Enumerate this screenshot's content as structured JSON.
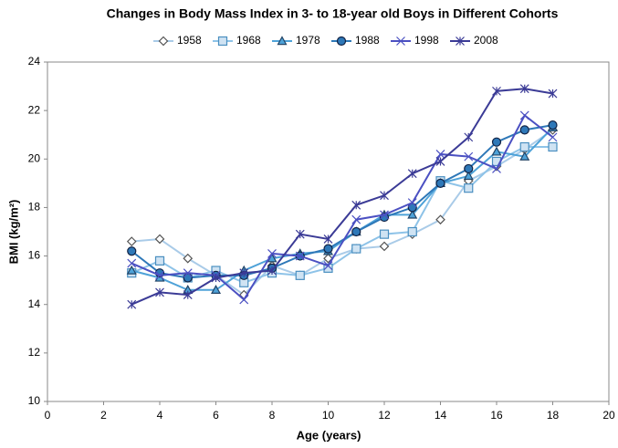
{
  "chart_data": {
    "type": "line",
    "title": "Changes in Body Mass Index in 3- to 18-year old Boys in Different Cohorts",
    "x_label": "Age (years)",
    "y_label": "BMI (kg/m²)",
    "x": [
      3,
      4,
      5,
      6,
      7,
      8,
      9,
      10,
      11,
      12,
      13,
      14,
      15,
      16,
      17,
      18
    ],
    "series": [
      {
        "name": "1958",
        "color": "#a9cbe8",
        "marker": "diamond",
        "values": [
          16.6,
          16.7,
          15.9,
          15.2,
          14.4,
          15.6,
          15.2,
          15.9,
          16.3,
          16.4,
          16.9,
          17.5,
          19.1,
          19.7,
          20.4,
          21.2
        ]
      },
      {
        "name": "1968",
        "color": "#8ec3e8",
        "marker": "square",
        "values": [
          15.3,
          15.8,
          15.1,
          15.4,
          14.9,
          15.3,
          15.2,
          15.5,
          16.3,
          16.9,
          17.0,
          19.1,
          18.8,
          19.9,
          20.5,
          20.5
        ]
      },
      {
        "name": "1978",
        "color": "#4ea2d8",
        "marker": "triangle",
        "values": [
          15.4,
          15.1,
          14.6,
          14.6,
          15.4,
          15.9,
          16.1,
          16.2,
          17.0,
          17.7,
          17.7,
          19.0,
          19.3,
          20.3,
          20.1,
          21.3
        ]
      },
      {
        "name": "1988",
        "color": "#2e78b8",
        "marker": "circle",
        "values": [
          16.2,
          15.3,
          15.1,
          15.2,
          15.2,
          15.5,
          16.0,
          16.3,
          17.0,
          17.6,
          18.0,
          19.0,
          19.6,
          20.7,
          21.2,
          21.4
        ]
      },
      {
        "name": "1998",
        "color": "#4b50c2",
        "marker": "x",
        "values": [
          15.7,
          15.2,
          15.3,
          15.2,
          14.2,
          16.1,
          16.0,
          15.6,
          17.5,
          17.7,
          18.2,
          20.2,
          20.1,
          19.6,
          21.8,
          20.9
        ]
      },
      {
        "name": "2008",
        "color": "#3b3b96",
        "marker": "star",
        "values": [
          14.0,
          14.5,
          14.4,
          15.1,
          15.3,
          15.4,
          16.9,
          16.7,
          18.1,
          18.5,
          19.4,
          19.9,
          20.9,
          22.8,
          22.9,
          22.7
        ]
      }
    ],
    "xlim": [
      0,
      20
    ],
    "xticks": [
      0,
      2,
      4,
      6,
      8,
      10,
      12,
      14,
      16,
      18,
      20
    ],
    "ylim": [
      10,
      24
    ],
    "yticks": [
      10,
      12,
      14,
      16,
      18,
      20,
      22,
      24
    ],
    "grid": false,
    "legend": "top"
  }
}
